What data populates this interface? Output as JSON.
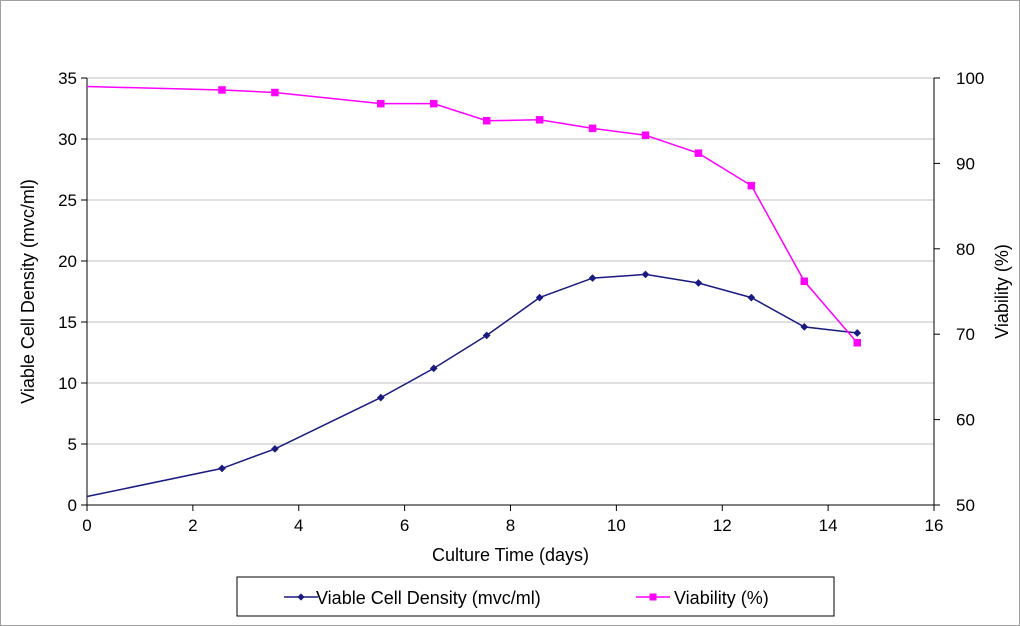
{
  "chart_data": {
    "type": "line",
    "xlabel": "Culture Time (days)",
    "ylabel_left": "Viable Cell Density (mvc/ml)",
    "ylabel_right": "Viability (%)",
    "xlim": [
      0,
      16
    ],
    "ylim_left": [
      0,
      35
    ],
    "ylim_right": [
      50,
      100
    ],
    "x_ticks": [
      "0",
      "2",
      "4",
      "6",
      "8",
      "10",
      "12",
      "14",
      "16"
    ],
    "y_left_ticks": [
      "0",
      "5",
      "10",
      "15",
      "20",
      "25",
      "30",
      "35"
    ],
    "y_right_ticks": [
      "50",
      "60",
      "70",
      "80",
      "90",
      "100"
    ],
    "grid": "horizontal",
    "legend_position": "bottom",
    "series": [
      {
        "name": "Viable Cell Density (mvc/ml)",
        "axis": "left",
        "color": "#1a1a80",
        "marker": "diamond",
        "x": [
          0,
          2.55,
          3.55,
          5.55,
          6.55,
          7.55,
          8.55,
          9.55,
          10.55,
          11.55,
          12.55,
          13.55,
          14.55
        ],
        "values": [
          0.7,
          3.0,
          4.6,
          8.8,
          11.2,
          13.9,
          17.0,
          18.6,
          18.9,
          18.2,
          17.0,
          14.6,
          14.1
        ],
        "first_marker_hidden": true
      },
      {
        "name": "Viability (%)",
        "axis": "right",
        "color": "#ff00ff",
        "marker": "square",
        "x": [
          0,
          2.55,
          3.55,
          5.55,
          6.55,
          7.55,
          8.55,
          9.55,
          10.55,
          11.55,
          12.55,
          13.55,
          14.55
        ],
        "values": [
          99.0,
          98.6,
          98.3,
          97.0,
          97.0,
          95.0,
          95.1,
          94.1,
          93.3,
          91.2,
          87.4,
          76.2,
          69.0
        ],
        "first_marker_hidden": true
      }
    ]
  }
}
